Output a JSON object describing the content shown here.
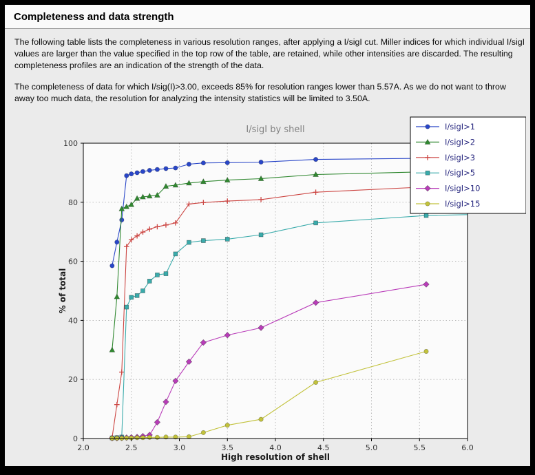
{
  "window": {
    "frame_color": "#000000",
    "panel_bg": "#ebebeb",
    "header_bg": "#fafafa"
  },
  "header": {
    "title": "Completeness and data strength"
  },
  "body": {
    "paragraph1": "The following table lists the completeness in various resolution ranges, after applying a I/sigI cut. Miller indices for which individual I/sigI values are larger than the value specified in the top row of the table, are retained, while other intensities are discarded. The resulting completeness profiles are an indication of the strength of the data.",
    "paragraph2": "The completeness of data for which I/sig(I)>3.00, exceeds  85% for resolution ranges lower than 5.57A. As we do not want to throw away too much data, the resolution for analyzing the intensity statistics will be limited to 3.50A."
  },
  "chart_data": {
    "type": "line",
    "title": "I/sigI by shell",
    "xlabel": "High resolution of shell",
    "ylabel": "% of total",
    "xlim": [
      2.0,
      6.0
    ],
    "ylim": [
      0,
      100
    ],
    "grid": true,
    "legend_position": "upper right",
    "xticks": [
      2.0,
      2.5,
      3.0,
      3.5,
      4.0,
      4.5,
      5.0,
      5.5,
      6.0
    ],
    "xtick_labels": [
      "2.0",
      "2.5",
      "3.0",
      "3.5",
      "4.0",
      "4.5",
      "5.0",
      "5.5",
      "6.0"
    ],
    "yticks": [
      0,
      20,
      40,
      60,
      80,
      100
    ],
    "ytick_labels": [
      "0",
      "20",
      "40",
      "60",
      "80",
      "100"
    ],
    "x": [
      2.3,
      2.35,
      2.4,
      2.45,
      2.5,
      2.56,
      2.62,
      2.69,
      2.77,
      2.86,
      2.96,
      3.1,
      3.25,
      3.5,
      3.85,
      4.42,
      5.57
    ],
    "series": [
      {
        "name": "I/sigI>1",
        "color": "#2946c8",
        "marker": "circle",
        "y": [
          58.5,
          66.5,
          74.0,
          89.0,
          89.6,
          90.0,
          90.4,
          90.8,
          91.1,
          91.4,
          91.6,
          92.9,
          93.3,
          93.4,
          93.6,
          94.5,
          94.9
        ],
        "edge_y": 95.2
      },
      {
        "name": "I/sigI>2",
        "color": "#308830",
        "marker": "triangle",
        "y": [
          30.0,
          48.0,
          77.8,
          78.5,
          79.2,
          81.3,
          81.8,
          82.1,
          82.4,
          85.4,
          85.8,
          86.5,
          87.0,
          87.5,
          88.0,
          89.4,
          90.3
        ],
        "edge_y": 90.7
      },
      {
        "name": "I/sigI>3",
        "color": "#cc4542",
        "marker": "plus",
        "y": [
          0.3,
          11.5,
          22.5,
          65.0,
          67.3,
          68.6,
          69.9,
          70.9,
          71.7,
          72.3,
          73.0,
          79.4,
          79.9,
          80.4,
          80.9,
          83.4,
          85.2
        ],
        "edge_y": 85.6
      },
      {
        "name": "I/sigI>5",
        "color": "#3aabab",
        "marker": "square",
        "y": [
          0.2,
          0.3,
          0.5,
          44.5,
          47.8,
          48.4,
          50.0,
          53.3,
          55.4,
          55.8,
          62.5,
          66.4,
          67.0,
          67.5,
          69.0,
          73.0,
          75.5
        ],
        "edge_y": 75.8
      },
      {
        "name": "I/sigI>10",
        "color": "#b93cb9",
        "marker": "diamond",
        "y": [
          0.1,
          0.1,
          0.2,
          0.3,
          0.4,
          0.5,
          0.8,
          1.2,
          5.5,
          12.4,
          19.5,
          26.0,
          32.5,
          35.0,
          37.5,
          46.0,
          52.2
        ],
        "edge_y": null
      },
      {
        "name": "I/sigI>15",
        "color": "#c2c23c",
        "marker": "circle",
        "y": [
          0.1,
          0.1,
          0.1,
          0.2,
          0.2,
          0.3,
          0.3,
          0.4,
          0.4,
          0.5,
          0.5,
          0.6,
          2.0,
          4.5,
          6.5,
          19.0,
          29.5
        ],
        "edge_y": null
      }
    ],
    "style": {
      "plot_bg": "#fbfbfb",
      "grid_color": "#b3b3b3",
      "axis_color": "#000000",
      "tick_label_color": "#333333",
      "title_color": "#808080",
      "label_color": "#1a1a1a",
      "legend_bg": "#ffffff",
      "legend_border": "#000000",
      "legend_text": "#26267e"
    }
  }
}
